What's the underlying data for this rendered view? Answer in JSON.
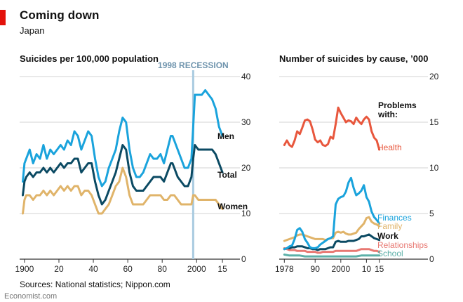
{
  "header": {
    "title": "Coming down",
    "subtitle": "Japan",
    "source": "Sources: National statistics; Nippon.com",
    "footer": "Economist.com"
  },
  "colors": {
    "brand_red": "#e3120b",
    "men": "#1aa3dc",
    "total": "#0b4a63",
    "women": "#e0b46a",
    "health": "#e8573d",
    "finances": "#1aa3dc",
    "family": "#e0b46a",
    "work": "#0b4a63",
    "relationships": "#e87872",
    "school": "#5cb0a8",
    "recession": "#a9cbe0",
    "grid": "#c5c5c5"
  },
  "chart_data": [
    {
      "type": "line",
      "title": "Suicides per 100,000 population",
      "xlabel": "",
      "ylabel": "",
      "xlim": [
        1898,
        2017
      ],
      "ylim": [
        0,
        40
      ],
      "yticks": [
        0,
        10,
        20,
        30,
        40
      ],
      "xticks": [
        1900,
        1920,
        1940,
        1960,
        1980,
        2000,
        2015
      ],
      "xtick_labels": [
        "1900",
        "20",
        "40",
        "60",
        "80",
        "2000",
        "15"
      ],
      "grid": true,
      "annotation": {
        "label": "1998 RECESSION",
        "x": 1998
      },
      "series": [
        {
          "name": "Men",
          "color_key": "men",
          "x": [
            1899,
            1900,
            1901,
            1903,
            1905,
            1907,
            1909,
            1911,
            1913,
            1915,
            1917,
            1919,
            1921,
            1923,
            1925,
            1927,
            1929,
            1931,
            1933,
            1935,
            1937,
            1939,
            1941,
            1943,
            1945,
            1947,
            1949,
            1951,
            1953,
            1955,
            1957,
            1959,
            1961,
            1963,
            1965,
            1967,
            1969,
            1971,
            1973,
            1975,
            1977,
            1979,
            1981,
            1983,
            1985,
            1986,
            1987,
            1989,
            1991,
            1993,
            1995,
            1997,
            1998,
            1999,
            2001,
            2003,
            2005,
            2007,
            2009,
            2011,
            2013,
            2015
          ],
          "values": [
            17,
            21,
            22,
            24,
            21,
            23,
            22,
            25,
            22,
            24,
            23,
            24,
            25,
            24,
            26,
            25,
            28,
            27,
            24,
            26,
            28,
            27,
            22,
            18,
            16,
            17,
            20,
            22,
            24,
            28,
            31,
            30,
            24,
            20,
            18,
            18,
            19,
            21,
            23,
            22,
            22,
            23,
            21,
            24,
            27,
            27,
            26,
            24,
            22,
            20,
            20,
            22,
            29,
            36,
            36,
            36,
            37,
            36,
            35,
            33,
            29,
            27
          ]
        },
        {
          "name": "Total",
          "color_key": "total",
          "x": [
            1899,
            1900,
            1901,
            1903,
            1905,
            1907,
            1909,
            1911,
            1913,
            1915,
            1917,
            1919,
            1921,
            1923,
            1925,
            1927,
            1929,
            1931,
            1933,
            1935,
            1937,
            1939,
            1941,
            1943,
            1945,
            1947,
            1949,
            1951,
            1953,
            1955,
            1957,
            1959,
            1961,
            1963,
            1965,
            1967,
            1969,
            1971,
            1973,
            1975,
            1977,
            1979,
            1981,
            1983,
            1985,
            1986,
            1987,
            1989,
            1991,
            1993,
            1995,
            1997,
            1998,
            1999,
            2001,
            2003,
            2005,
            2007,
            2009,
            2011,
            2013,
            2015
          ],
          "values": [
            14,
            17,
            18,
            19,
            18,
            19,
            19,
            20,
            19,
            20,
            19,
            20,
            21,
            20,
            21,
            21,
            22,
            22,
            19,
            20,
            21,
            21,
            17,
            14,
            12,
            13,
            15,
            17,
            19,
            22,
            25,
            24,
            19,
            16,
            15,
            15,
            15,
            16,
            17,
            18,
            18,
            18,
            17,
            19,
            21,
            21,
            20,
            18,
            17,
            16,
            16,
            18,
            22,
            25,
            24,
            24,
            24,
            24,
            24,
            23,
            21,
            19
          ]
        },
        {
          "name": "Women",
          "color_key": "women",
          "x": [
            1899,
            1900,
            1901,
            1903,
            1905,
            1907,
            1909,
            1911,
            1913,
            1915,
            1917,
            1919,
            1921,
            1923,
            1925,
            1927,
            1929,
            1931,
            1933,
            1935,
            1937,
            1939,
            1941,
            1943,
            1945,
            1947,
            1949,
            1951,
            1953,
            1955,
            1957,
            1959,
            1961,
            1963,
            1965,
            1967,
            1969,
            1971,
            1973,
            1975,
            1977,
            1979,
            1981,
            1983,
            1985,
            1986,
            1987,
            1989,
            1991,
            1993,
            1995,
            1997,
            1998,
            1999,
            2001,
            2003,
            2005,
            2007,
            2009,
            2011,
            2013,
            2015
          ],
          "values": [
            10,
            13,
            14,
            14,
            13,
            14,
            14,
            15,
            14,
            15,
            14,
            15,
            16,
            15,
            16,
            15,
            16,
            16,
            14,
            15,
            15,
            14,
            12,
            10,
            10,
            11,
            12,
            14,
            16,
            17,
            20,
            18,
            14,
            12,
            12,
            12,
            12,
            13,
            14,
            14,
            14,
            14,
            13,
            13,
            14,
            14,
            14,
            13,
            12,
            12,
            12,
            12,
            14,
            14,
            13,
            13,
            13,
            13,
            13,
            13,
            12,
            11
          ]
        }
      ]
    },
    {
      "type": "line",
      "title": "Number of suicides by cause, ’000",
      "xlabel": "",
      "ylabel": "",
      "xlim": [
        1976,
        2017
      ],
      "ylim": [
        0,
        20
      ],
      "yticks": [
        0,
        5,
        10,
        15,
        20
      ],
      "xticks": [
        1978,
        1990,
        2000,
        2010,
        2015
      ],
      "xtick_labels": [
        "1978",
        "90",
        "2000",
        "10",
        "15"
      ],
      "grid": true,
      "legend_title": "Problems with:",
      "series": [
        {
          "name": "Health",
          "color_key": "health",
          "x": [
            1978,
            1979,
            1980,
            1981,
            1982,
            1983,
            1984,
            1985,
            1986,
            1987,
            1988,
            1989,
            1990,
            1991,
            1992,
            1993,
            1994,
            1995,
            1996,
            1997,
            1998,
            1999,
            2000,
            2001,
            2002,
            2003,
            2004,
            2005,
            2006,
            2007,
            2008,
            2009,
            2010,
            2011,
            2012,
            2013,
            2014,
            2015
          ],
          "values": [
            12.5,
            13,
            12.5,
            12.3,
            13,
            14,
            13.7,
            14.4,
            15.2,
            15.3,
            15.1,
            14.2,
            13.1,
            12.8,
            13,
            12.5,
            12.4,
            12.6,
            13.4,
            13.2,
            14.8,
            16.6,
            16,
            15.5,
            15,
            15.2,
            15.1,
            14.8,
            15.5,
            15.1,
            14.8,
            15.3,
            15.6,
            15.3,
            14,
            13.3,
            13,
            12
          ]
        },
        {
          "name": "Finances",
          "color_key": "finances",
          "x": [
            1978,
            1979,
            1980,
            1981,
            1982,
            1983,
            1984,
            1985,
            1986,
            1987,
            1988,
            1989,
            1990,
            1991,
            1992,
            1993,
            1994,
            1995,
            1996,
            1997,
            1998,
            1999,
            2000,
            2001,
            2002,
            2003,
            2004,
            2005,
            2006,
            2007,
            2008,
            2009,
            2010,
            2011,
            2012,
            2013,
            2014,
            2015
          ],
          "values": [
            1.1,
            1.2,
            1.4,
            1.5,
            2.2,
            3.2,
            3.4,
            3.0,
            2.2,
            1.8,
            1.3,
            1.2,
            1.2,
            1.3,
            1.6,
            1.8,
            2.0,
            2.2,
            2.3,
            2.5,
            6.0,
            6.6,
            6.8,
            6.9,
            7.4,
            8.4,
            8.9,
            7.8,
            7.0,
            7.2,
            7.5,
            8.1,
            6.8,
            6.3,
            5.2,
            4.6,
            4.3,
            3.9
          ]
        },
        {
          "name": "Family",
          "color_key": "family",
          "x": [
            1978,
            1979,
            1980,
            1981,
            1982,
            1983,
            1984,
            1985,
            1986,
            1987,
            1988,
            1989,
            1990,
            1991,
            1992,
            1993,
            1994,
            1995,
            1996,
            1997,
            1998,
            1999,
            2000,
            2001,
            2002,
            2003,
            2004,
            2005,
            2006,
            2007,
            2008,
            2009,
            2010,
            2011,
            2012,
            2013,
            2014,
            2015
          ],
          "values": [
            2.0,
            2.1,
            2.2,
            2.3,
            2.4,
            2.6,
            2.7,
            2.7,
            2.6,
            2.5,
            2.4,
            2.3,
            2.2,
            2.2,
            2.2,
            2.2,
            2.1,
            2.2,
            2.3,
            2.3,
            2.9,
            3.0,
            2.9,
            3.0,
            2.8,
            2.7,
            2.7,
            2.8,
            2.9,
            3.3,
            3.6,
            3.9,
            4.5,
            4.6,
            4.1,
            3.9,
            3.8,
            3.6
          ]
        },
        {
          "name": "Work",
          "color_key": "work",
          "x": [
            1978,
            1979,
            1980,
            1981,
            1982,
            1983,
            1984,
            1985,
            1986,
            1987,
            1988,
            1989,
            1990,
            1991,
            1992,
            1993,
            1994,
            1995,
            1996,
            1997,
            1998,
            1999,
            2000,
            2001,
            2002,
            2003,
            2004,
            2005,
            2006,
            2007,
            2008,
            2009,
            2010,
            2011,
            2012,
            2013,
            2014,
            2015
          ],
          "values": [
            1.1,
            1.2,
            1.2,
            1.3,
            1.3,
            1.4,
            1.4,
            1.4,
            1.3,
            1.2,
            1.2,
            1.1,
            1.1,
            1.0,
            1.1,
            1.1,
            1.1,
            1.2,
            1.3,
            1.3,
            1.9,
            2.0,
            1.9,
            1.9,
            1.9,
            2.0,
            2.0,
            2.0,
            2.1,
            2.2,
            2.5,
            2.5,
            2.6,
            2.7,
            2.5,
            2.3,
            2.2,
            2.1
          ]
        },
        {
          "name": "Relationships",
          "color_key": "relationships",
          "x": [
            1978,
            1979,
            1980,
            1981,
            1982,
            1983,
            1984,
            1985,
            1986,
            1987,
            1988,
            1989,
            1990,
            1991,
            1992,
            1993,
            1994,
            1995,
            1996,
            1997,
            1998,
            1999,
            2000,
            2001,
            2002,
            2003,
            2004,
            2005,
            2006,
            2007,
            2008,
            2009,
            2010,
            2011,
            2012,
            2013,
            2014,
            2015
          ],
          "values": [
            1.2,
            1.1,
            1.0,
            1.0,
            1.0,
            0.9,
            0.9,
            0.9,
            0.9,
            0.8,
            0.8,
            0.8,
            0.8,
            0.7,
            0.7,
            0.8,
            0.8,
            0.8,
            0.8,
            0.8,
            0.9,
            0.9,
            0.9,
            0.9,
            0.9,
            0.9,
            0.9,
            0.9,
            0.9,
            1.0,
            1.1,
            1.1,
            1.1,
            1.1,
            1.0,
            0.9,
            0.9,
            0.8
          ]
        },
        {
          "name": "School",
          "color_key": "school",
          "x": [
            1978,
            1980,
            1982,
            1984,
            1986,
            1988,
            1990,
            1992,
            1994,
            1996,
            1998,
            2000,
            2002,
            2004,
            2006,
            2008,
            2010,
            2012,
            2014,
            2015
          ],
          "values": [
            0.5,
            0.4,
            0.4,
            0.4,
            0.3,
            0.3,
            0.3,
            0.3,
            0.3,
            0.3,
            0.3,
            0.3,
            0.3,
            0.3,
            0.3,
            0.4,
            0.4,
            0.4,
            0.4,
            0.4
          ]
        }
      ]
    }
  ]
}
